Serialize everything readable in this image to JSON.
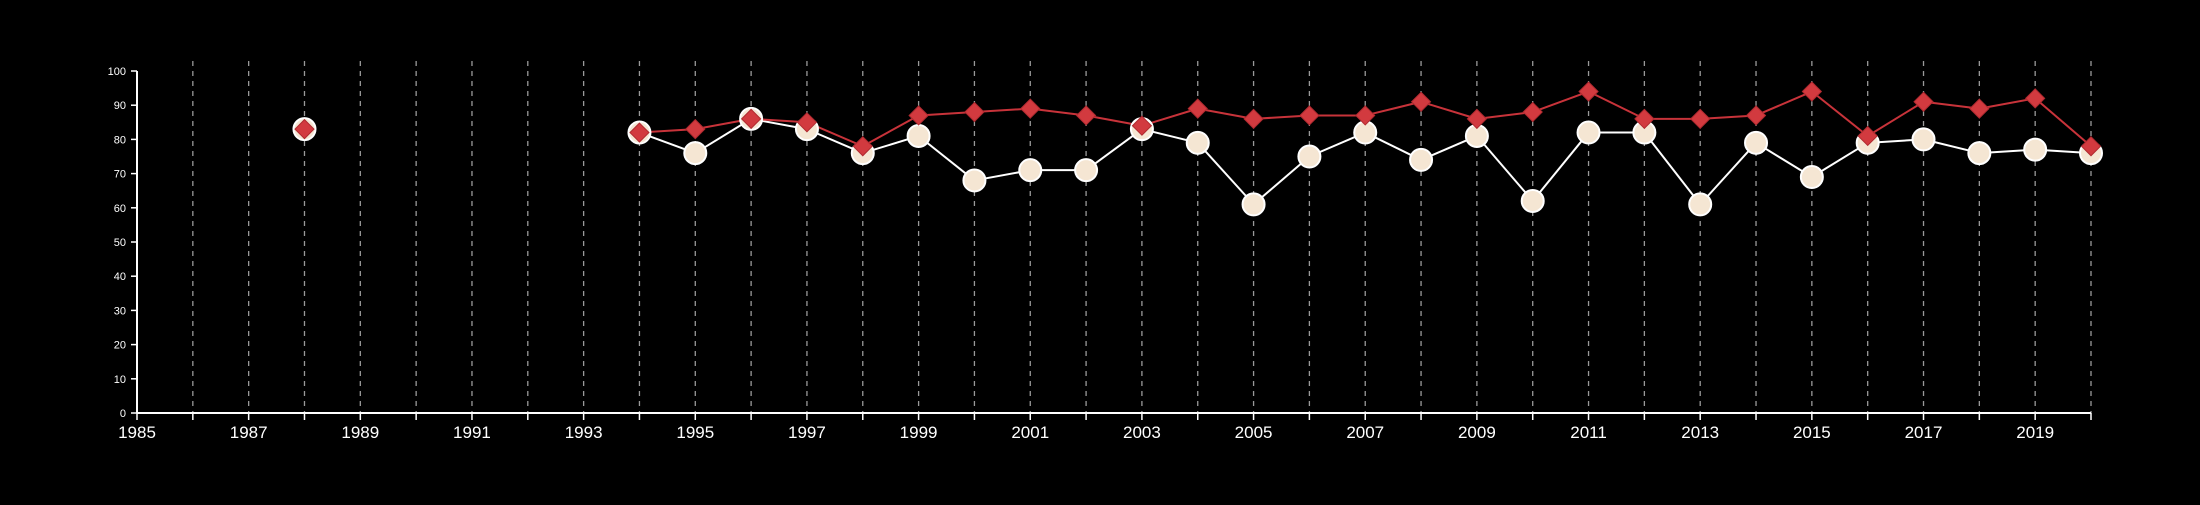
{
  "chart_data": {
    "type": "line",
    "title": "",
    "xlabel": "",
    "ylabel": "",
    "xlim": [
      1985,
      2020
    ],
    "ylim": [
      0,
      100
    ],
    "x_ticks": [
      1985,
      1986,
      1987,
      1988,
      1989,
      1990,
      1991,
      1992,
      1993,
      1994,
      1995,
      1996,
      1997,
      1998,
      1999,
      2000,
      2001,
      2002,
      2003,
      2004,
      2005,
      2006,
      2007,
      2008,
      2009,
      2010,
      2011,
      2012,
      2013,
      2014,
      2015,
      2016,
      2017,
      2018,
      2019,
      2020
    ],
    "x_tick_labels": [
      {
        "x": 1985,
        "label": "1985"
      },
      {
        "x": 1987,
        "label": "1987"
      },
      {
        "x": 1989,
        "label": "1989"
      },
      {
        "x": 1991,
        "label": "1991"
      },
      {
        "x": 1993,
        "label": "1993"
      },
      {
        "x": 1995,
        "label": "1995"
      },
      {
        "x": 1997,
        "label": "1997"
      },
      {
        "x": 1999,
        "label": "1999"
      },
      {
        "x": 2001,
        "label": "2001"
      },
      {
        "x": 2003,
        "label": "2003"
      },
      {
        "x": 2005,
        "label": "2005"
      },
      {
        "x": 2007,
        "label": "2007"
      },
      {
        "x": 2009,
        "label": "2009"
      },
      {
        "x": 2011,
        "label": "2011"
      },
      {
        "x": 2013,
        "label": "2013"
      },
      {
        "x": 2015,
        "label": "2015"
      },
      {
        "x": 2017,
        "label": "2017"
      },
      {
        "x": 2019,
        "label": "2019"
      }
    ],
    "y_ticks": [
      0,
      10,
      20,
      30,
      40,
      50,
      60,
      70,
      80,
      90,
      100
    ],
    "y_tick_labels": [
      "0",
      "10",
      "20",
      "30",
      "40",
      "50",
      "60",
      "70",
      "80",
      "90",
      "100"
    ],
    "grid": "vertical dashed",
    "background": "#000000",
    "series": [
      {
        "marker": "circle",
        "color": "#ffffff",
        "fill": "#f5e6d3",
        "points": [
          {
            "x": 1988,
            "y": 83
          },
          {
            "x": 1994,
            "y": 82
          },
          {
            "x": 1995,
            "y": 76
          },
          {
            "x": 1996,
            "y": 86
          },
          {
            "x": 1997,
            "y": 83
          },
          {
            "x": 1998,
            "y": 76
          },
          {
            "x": 1999,
            "y": 81
          },
          {
            "x": 2000,
            "y": 68
          },
          {
            "x": 2001,
            "y": 71
          },
          {
            "x": 2002,
            "y": 71
          },
          {
            "x": 2003,
            "y": 83
          },
          {
            "x": 2004,
            "y": 79
          },
          {
            "x": 2005,
            "y": 61
          },
          {
            "x": 2006,
            "y": 75
          },
          {
            "x": 2007,
            "y": 82
          },
          {
            "x": 2008,
            "y": 74
          },
          {
            "x": 2009,
            "y": 81
          },
          {
            "x": 2010,
            "y": 62
          },
          {
            "x": 2011,
            "y": 82
          },
          {
            "x": 2012,
            "y": 82
          },
          {
            "x": 2013,
            "y": 61
          },
          {
            "x": 2014,
            "y": 79
          },
          {
            "x": 2015,
            "y": 69
          },
          {
            "x": 2016,
            "y": 79
          },
          {
            "x": 2017,
            "y": 80
          },
          {
            "x": 2018,
            "y": 76
          },
          {
            "x": 2019,
            "y": 77
          },
          {
            "x": 2020,
            "y": 76
          }
        ]
      },
      {
        "marker": "diamond",
        "color": "#c8333a",
        "fill": "#d23a3f",
        "points": [
          {
            "x": 1988,
            "y": 83
          },
          {
            "x": 1994,
            "y": 82
          },
          {
            "x": 1995,
            "y": 83
          },
          {
            "x": 1996,
            "y": 86
          },
          {
            "x": 1997,
            "y": 85
          },
          {
            "x": 1998,
            "y": 78
          },
          {
            "x": 1999,
            "y": 87
          },
          {
            "x": 2000,
            "y": 88
          },
          {
            "x": 2001,
            "y": 89
          },
          {
            "x": 2002,
            "y": 87
          },
          {
            "x": 2003,
            "y": 84
          },
          {
            "x": 2004,
            "y": 89
          },
          {
            "x": 2005,
            "y": 86
          },
          {
            "x": 2006,
            "y": 87
          },
          {
            "x": 2007,
            "y": 87
          },
          {
            "x": 2008,
            "y": 91
          },
          {
            "x": 2009,
            "y": 86
          },
          {
            "x": 2010,
            "y": 88
          },
          {
            "x": 2011,
            "y": 94
          },
          {
            "x": 2012,
            "y": 86
          },
          {
            "x": 2013,
            "y": 86
          },
          {
            "x": 2014,
            "y": 87
          },
          {
            "x": 2015,
            "y": 94
          },
          {
            "x": 2016,
            "y": 81
          },
          {
            "x": 2017,
            "y": 91
          },
          {
            "x": 2018,
            "y": 89
          },
          {
            "x": 2019,
            "y": 92
          },
          {
            "x": 2020,
            "y": 78
          }
        ]
      }
    ]
  }
}
